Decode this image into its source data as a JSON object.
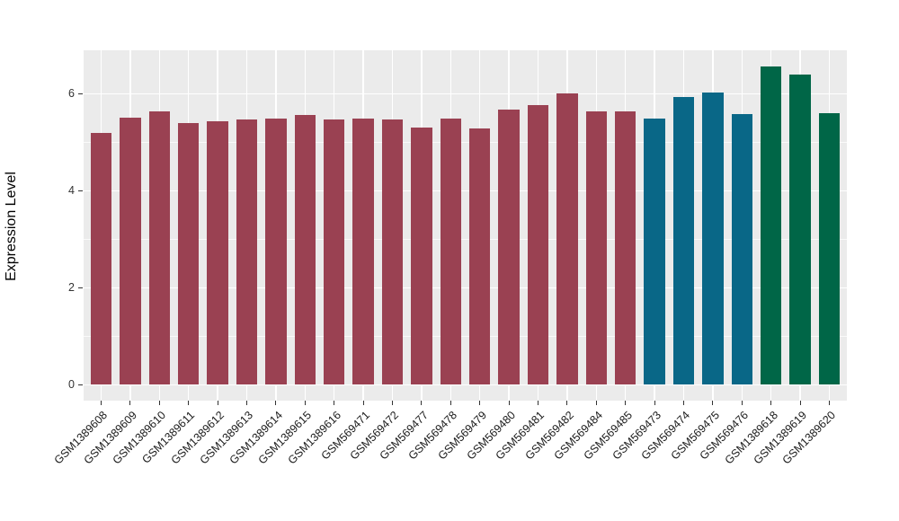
{
  "chart_data": {
    "type": "bar",
    "title": "",
    "xlabel": "",
    "ylabel": "Expression Level",
    "ylim": [
      -0.33,
      6.89
    ],
    "yticks": [
      0,
      2,
      4,
      6
    ],
    "yminor": [
      1,
      3,
      5
    ],
    "grid": "on",
    "legend": "none",
    "panel_bg": "#EBEBEB",
    "grid_color": "#FFFFFF",
    "categories": [
      "GSM1389608",
      "GSM1389609",
      "GSM1389610",
      "GSM1389611",
      "GSM1389612",
      "GSM1389613",
      "GSM1389614",
      "GSM1389615",
      "GSM1389616",
      "GSM569471",
      "GSM569472",
      "GSM569477",
      "GSM569478",
      "GSM569479",
      "GSM569480",
      "GSM569481",
      "GSM569482",
      "GSM569484",
      "GSM569485",
      "GSM569473",
      "GSM569474",
      "GSM569475",
      "GSM569476",
      "GSM1389618",
      "GSM1389619",
      "GSM1389620"
    ],
    "values": [
      5.2,
      5.51,
      5.64,
      5.4,
      5.44,
      5.46,
      5.48,
      5.56,
      5.46,
      5.48,
      5.46,
      5.31,
      5.49,
      5.28,
      5.68,
      5.77,
      6.0,
      5.63,
      5.63,
      5.49,
      5.93,
      6.02,
      5.58,
      6.56,
      6.4,
      5.6
    ],
    "groups": [
      0,
      0,
      0,
      0,
      0,
      0,
      0,
      0,
      0,
      0,
      0,
      0,
      0,
      0,
      0,
      0,
      0,
      0,
      0,
      1,
      1,
      1,
      1,
      2,
      2,
      2
    ],
    "group_colors": [
      "#9A4152",
      "#096787",
      "#006647"
    ]
  }
}
